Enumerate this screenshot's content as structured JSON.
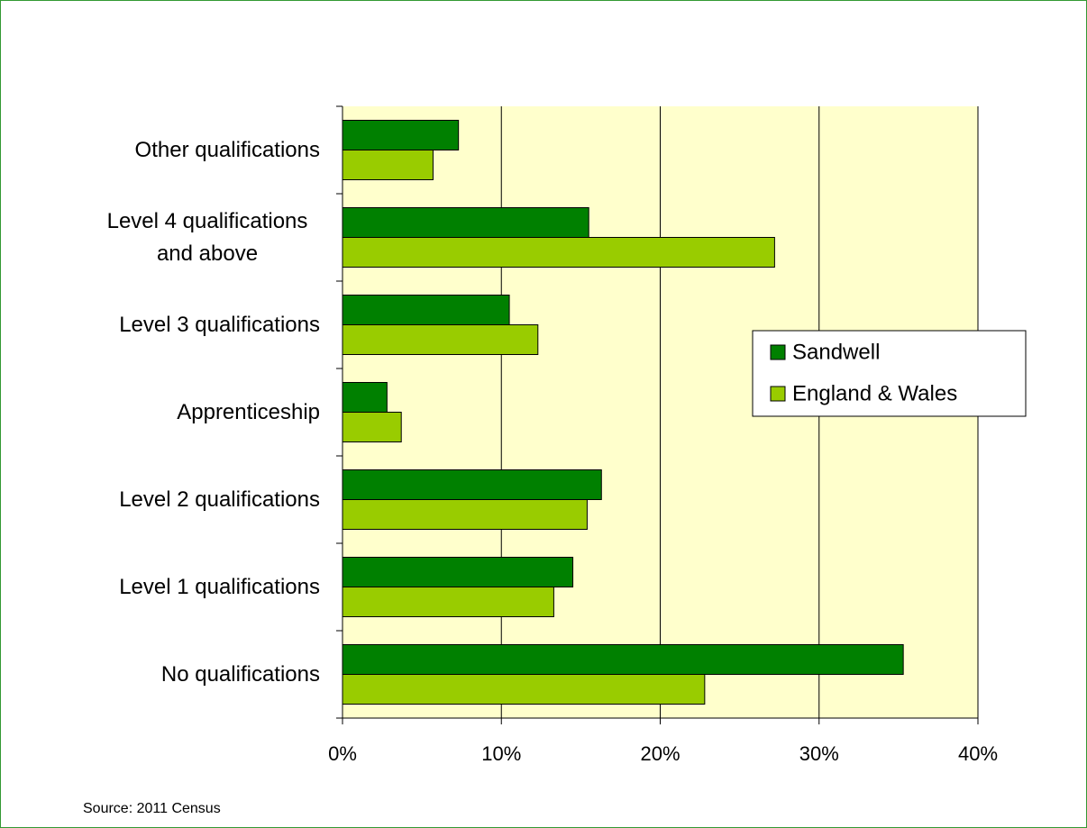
{
  "chart_data": {
    "type": "bar",
    "orientation": "horizontal",
    "categories": [
      "Other qualifications",
      "Level 4 qualifications and above",
      "Level 3 qualifications",
      "Apprenticeship",
      "Level 2 qualifications",
      "Level 1 qualifications",
      "No qualifications"
    ],
    "series": [
      {
        "name": "Sandwell",
        "color": "#008000",
        "values": [
          7.3,
          15.5,
          10.5,
          2.8,
          16.3,
          14.5,
          35.3
        ]
      },
      {
        "name": "England & Wales",
        "color": "#99cc00",
        "values": [
          5.7,
          27.2,
          12.3,
          3.7,
          15.4,
          13.3,
          22.8
        ]
      }
    ],
    "xlim": [
      0,
      40
    ],
    "xticks": [
      {
        "value": 0,
        "label": "0%"
      },
      {
        "value": 10,
        "label": "10%"
      },
      {
        "value": 20,
        "label": "20%"
      },
      {
        "value": 30,
        "label": "30%"
      },
      {
        "value": 40,
        "label": "40%"
      }
    ],
    "grid": true,
    "legend": "right",
    "source": "Source: 2011 Census"
  }
}
